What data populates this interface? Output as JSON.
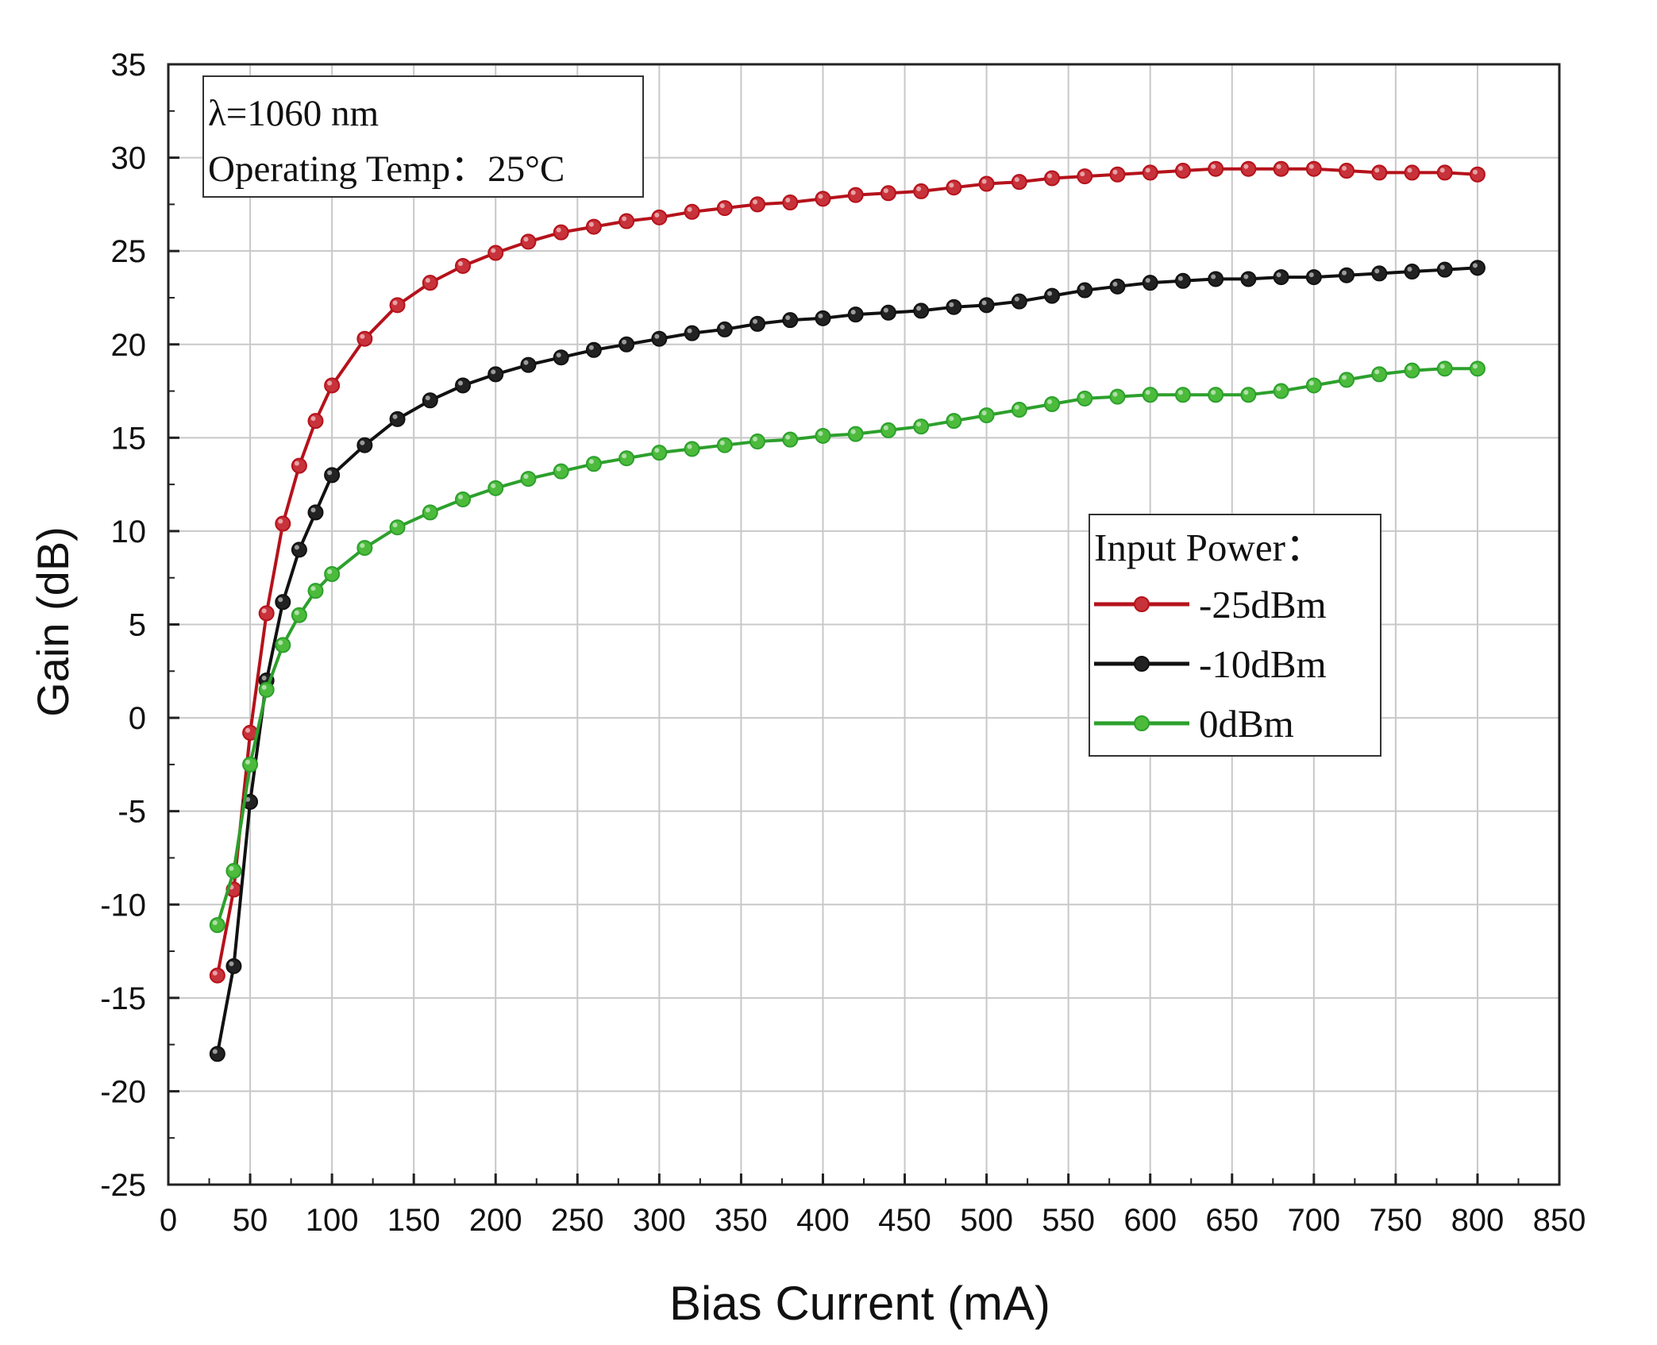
{
  "chart_data": {
    "type": "line",
    "title": "",
    "xlabel": "Bias Current (mA)",
    "ylabel": "Gain (dB)",
    "xlim": [
      0,
      850
    ],
    "ylim": [
      -25,
      35
    ],
    "xticks": [
      0,
      50,
      100,
      150,
      200,
      250,
      300,
      350,
      400,
      450,
      500,
      550,
      600,
      650,
      700,
      750,
      800,
      850
    ],
    "yticks": [
      -25,
      -20,
      -15,
      -10,
      -5,
      0,
      5,
      10,
      15,
      20,
      25,
      30,
      35
    ],
    "grid": true,
    "annotation": {
      "lines": [
        "λ=1060 nm",
        "Operating Temp：25°C"
      ]
    },
    "legend": {
      "title": "Input Power：",
      "position": "right-middle"
    },
    "x": [
      30,
      40,
      50,
      60,
      70,
      80,
      90,
      100,
      120,
      140,
      160,
      180,
      200,
      220,
      240,
      260,
      280,
      300,
      320,
      340,
      360,
      380,
      400,
      420,
      440,
      460,
      480,
      500,
      520,
      540,
      560,
      580,
      600,
      620,
      640,
      660,
      680,
      700,
      720,
      740,
      760,
      780,
      800
    ],
    "series": [
      {
        "name": "-25dBm",
        "color": "#b5121b",
        "marker_color": "#c8323a",
        "values": [
          -13.8,
          -9.2,
          -0.8,
          5.6,
          10.4,
          13.5,
          15.9,
          17.8,
          20.3,
          22.1,
          23.3,
          24.2,
          24.9,
          25.5,
          26.0,
          26.3,
          26.6,
          26.8,
          27.1,
          27.3,
          27.5,
          27.6,
          27.8,
          28.0,
          28.1,
          28.2,
          28.4,
          28.6,
          28.7,
          28.9,
          29.0,
          29.1,
          29.2,
          29.3,
          29.4,
          29.4,
          29.4,
          29.4,
          29.3,
          29.2,
          29.2,
          29.2,
          29.1
        ]
      },
      {
        "name": "-10dBm",
        "color": "#111111",
        "marker_color": "#222222",
        "values": [
          -18.0,
          -13.3,
          -4.5,
          2.0,
          6.2,
          9.0,
          11.0,
          13.0,
          14.6,
          16.0,
          17.0,
          17.8,
          18.4,
          18.9,
          19.3,
          19.7,
          20.0,
          20.3,
          20.6,
          20.8,
          21.1,
          21.3,
          21.4,
          21.6,
          21.7,
          21.8,
          22.0,
          22.1,
          22.3,
          22.6,
          22.9,
          23.1,
          23.3,
          23.4,
          23.5,
          23.5,
          23.6,
          23.6,
          23.7,
          23.8,
          23.9,
          24.0,
          24.1
        ]
      },
      {
        "name": "0dBm",
        "color": "#2ca02c",
        "marker_color": "#4cbb3c",
        "values": [
          -11.1,
          -8.2,
          -2.5,
          1.5,
          3.9,
          5.5,
          6.8,
          7.7,
          9.1,
          10.2,
          11.0,
          11.7,
          12.3,
          12.8,
          13.2,
          13.6,
          13.9,
          14.2,
          14.4,
          14.6,
          14.8,
          14.9,
          15.1,
          15.2,
          15.4,
          15.6,
          15.9,
          16.2,
          16.5,
          16.8,
          17.1,
          17.2,
          17.3,
          17.3,
          17.3,
          17.3,
          17.5,
          17.8,
          18.1,
          18.4,
          18.6,
          18.7,
          18.7
        ]
      }
    ]
  }
}
